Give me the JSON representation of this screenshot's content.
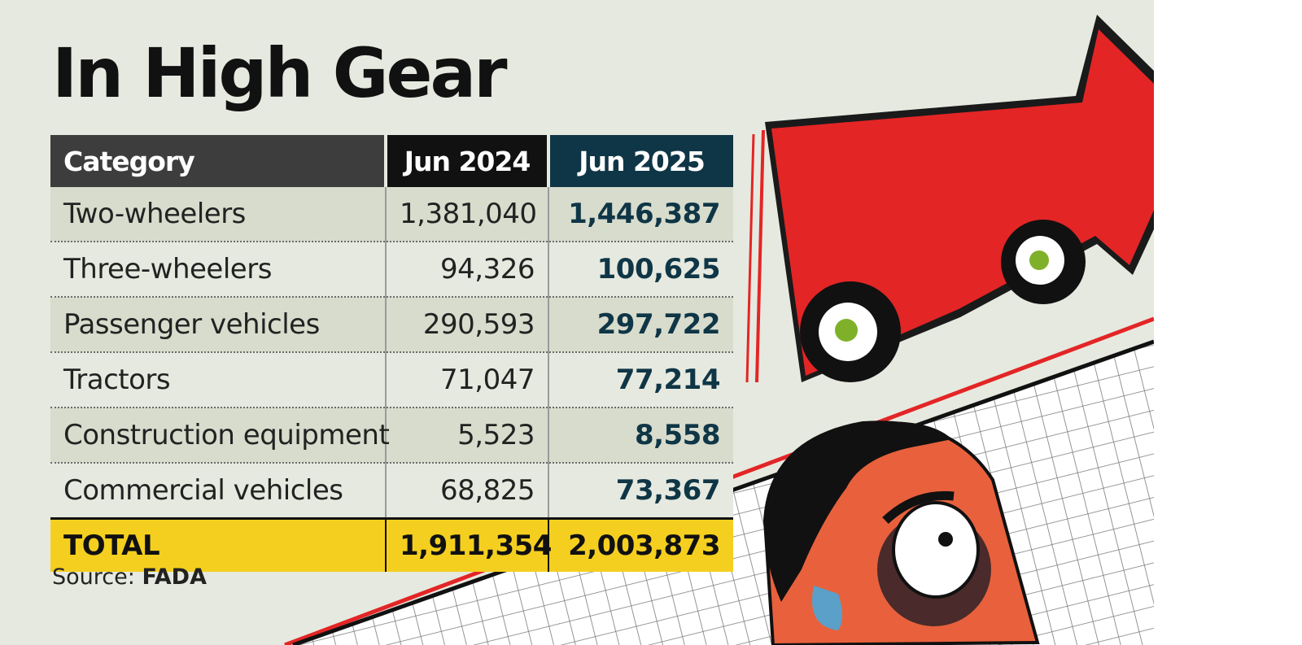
{
  "chart_data": {
    "type": "table",
    "title": "In High Gear",
    "columns": [
      "Category",
      "Jun 2024",
      "Jun 2025"
    ],
    "rows": [
      {
        "category": "Two-wheelers",
        "jun2024": "1,381,040",
        "jun2025": "1,446,387"
      },
      {
        "category": "Three-wheelers",
        "jun2024": "94,326",
        "jun2025": "100,625"
      },
      {
        "category": "Passenger vehicles",
        "jun2024": "290,593",
        "jun2025": "297,722"
      },
      {
        "category": "Tractors",
        "jun2024": "71,047",
        "jun2025": "77,214"
      },
      {
        "category": "Construction equipment",
        "jun2024": "5,523",
        "jun2025": "8,558"
      },
      {
        "category": "Commercial vehicles",
        "jun2024": "68,825",
        "jun2025": "73,367"
      }
    ],
    "total": {
      "label": "TOTAL",
      "jun2024": "1,911,354",
      "jun2025": "2,003,873"
    },
    "source": {
      "prefix": "Source:",
      "name": "FADA"
    }
  },
  "colors": {
    "background": "#e6e9df",
    "header_category": "#3d3d3d",
    "header_2024": "#111111",
    "header_2025": "#0f3646",
    "total_row": "#f5cf1f",
    "value_2025_text": "#0f3646",
    "arrow": "#e32526"
  },
  "illustration": {
    "icons": [
      "red-arrow-car-icon",
      "grid-graph-icon",
      "man-face-icon"
    ]
  }
}
